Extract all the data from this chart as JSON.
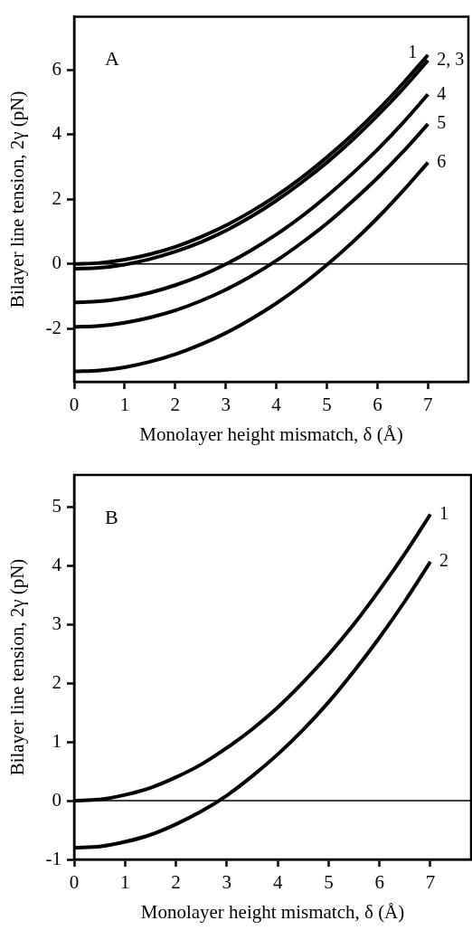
{
  "chart_data": [
    {
      "type": "line",
      "xlabel": "Monolayer height mismatch, δ (Å)",
      "ylabel": "Bilayer line tension, 2γ (pN)",
      "annotations": [
        "A"
      ],
      "x": [
        0,
        0.5,
        1,
        1.5,
        2,
        2.5,
        3,
        3.5,
        4,
        4.5,
        5,
        5.5,
        6,
        6.5,
        7
      ],
      "series": [
        {
          "name": "1",
          "color": "#000000",
          "values": [
            0,
            0.03,
            0.13,
            0.3,
            0.53,
            0.83,
            1.19,
            1.62,
            2.11,
            2.67,
            3.3,
            3.99,
            4.75,
            5.58,
            6.47
          ]
        },
        {
          "name": "2, 3",
          "color": "#000000",
          "values": [
            -0.15,
            -0.12,
            -0.02,
            0.15,
            0.38,
            0.67,
            1.03,
            1.46,
            1.96,
            2.52,
            3.14,
            3.83,
            4.59,
            5.41,
            6.3
          ]
        },
        {
          "name": "4",
          "color": "#000000",
          "values": [
            -1.19,
            -1.16,
            -1.06,
            -0.89,
            -0.66,
            -0.37,
            -0.01,
            0.42,
            0.91,
            1.47,
            2.1,
            2.79,
            3.54,
            4.36,
            5.25
          ]
        },
        {
          "name": "5",
          "color": "#000000",
          "values": [
            -1.95,
            -1.92,
            -1.82,
            -1.66,
            -1.44,
            -1.15,
            -0.8,
            -0.38,
            0.1,
            0.65,
            1.25,
            1.93,
            2.66,
            3.46,
            4.33
          ]
        },
        {
          "name": "6",
          "color": "#000000",
          "values": [
            -3.33,
            -3.3,
            -3.2,
            -3.03,
            -2.8,
            -2.5,
            -2.14,
            -1.71,
            -1.22,
            -0.66,
            -0.03,
            0.66,
            1.42,
            2.25,
            3.14
          ]
        }
      ],
      "xlim": [
        0,
        7.8
      ],
      "xticks": [
        0,
        1,
        2,
        3,
        4,
        5,
        6,
        7
      ],
      "ylim": [
        -3.65,
        7.65
      ],
      "yticks": [
        -2,
        0,
        2,
        4,
        6
      ],
      "ref_lines": [
        {
          "axis": "y",
          "value": 0
        }
      ],
      "marker": "none",
      "line_style": "solid",
      "legend": false
    },
    {
      "type": "line",
      "xlabel": "Monolayer height mismatch, δ (Å)",
      "ylabel": "Bilayer line tension, 2γ (pN)",
      "annotations": [
        "B"
      ],
      "x": [
        0,
        0.5,
        1,
        1.5,
        2,
        2.5,
        3,
        3.5,
        4,
        4.5,
        5,
        5.5,
        6,
        6.5,
        7
      ],
      "series": [
        {
          "name": "1",
          "color": "#000000",
          "values": [
            0,
            0.02,
            0.1,
            0.22,
            0.4,
            0.62,
            0.9,
            1.22,
            1.59,
            2.02,
            2.49,
            3.01,
            3.59,
            4.21,
            4.88
          ]
        },
        {
          "name": "2",
          "color": "#000000",
          "values": [
            -0.8,
            -0.78,
            -0.7,
            -0.58,
            -0.4,
            -0.18,
            0.09,
            0.42,
            0.79,
            1.21,
            1.68,
            2.21,
            2.78,
            3.4,
            4.07
          ]
        }
      ],
      "xlim": [
        0,
        7.8
      ],
      "xticks": [
        0,
        1,
        2,
        3,
        4,
        5,
        6,
        7
      ],
      "ylim": [
        -1,
        5.55
      ],
      "yticks": [
        -1,
        0,
        1,
        2,
        3,
        4,
        5
      ],
      "ref_lines": [
        {
          "axis": "y",
          "value": 0
        }
      ],
      "marker": "none",
      "line_style": "solid",
      "legend": false
    }
  ]
}
